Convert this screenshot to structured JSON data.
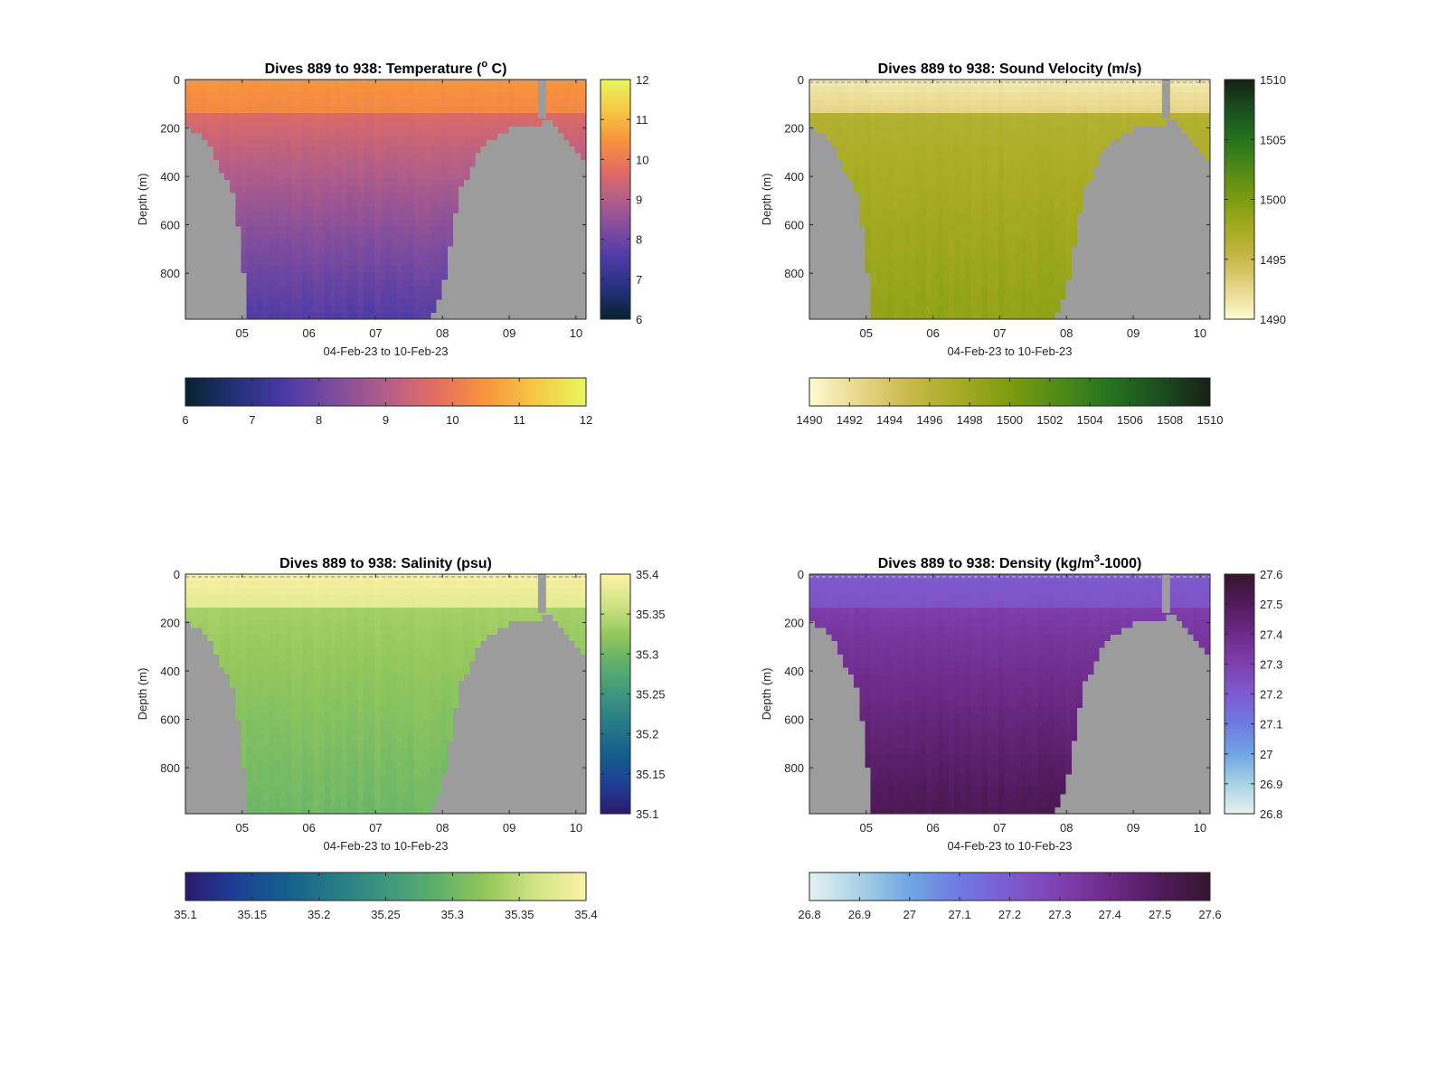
{
  "figure": {
    "background": "#ffffff",
    "mask_color": "#9c9c9c"
  },
  "chart_data": [
    {
      "type": "heatmap",
      "title_main": "Dives 889 to 938: Temperature (",
      "title_sup": "o",
      "title_tail": " C)",
      "xlabel": "04-Feb-23 to 10-Feb-23",
      "ylabel": "Depth (m)",
      "x_ticks": [
        "05",
        "06",
        "07",
        "08",
        "09",
        "10"
      ],
      "x_range_days": [
        4.15,
        10.15
      ],
      "y_ticks": [
        "0",
        "200",
        "400",
        "600",
        "800"
      ],
      "ylim": [
        0,
        990
      ],
      "y_reversed": true,
      "colormap": "thermal",
      "colormap_stops": [
        "#05232e",
        "#24307a",
        "#4b3aa6",
        "#7e4c9e",
        "#b35e88",
        "#e46d60",
        "#f8953b",
        "#f6c845",
        "#e8f85e"
      ],
      "clim": [
        6,
        12
      ],
      "cbar_side_ticks": [
        "6",
        "7",
        "8",
        "9",
        "10",
        "11",
        "12"
      ],
      "cbar_bottom_ticks": [
        "6",
        "7",
        "8",
        "9",
        "10",
        "11",
        "12"
      ],
      "profile": {
        "surface": 10.5,
        "mid": 9.6,
        "deep": 7.6
      }
    },
    {
      "type": "heatmap",
      "title_main": "Dives 889 to 938: Sound Velocity (m/s)",
      "title_sup": "",
      "title_tail": "",
      "xlabel": "04-Feb-23 to 10-Feb-23",
      "ylabel": "Depth (m)",
      "x_ticks": [
        "05",
        "06",
        "07",
        "08",
        "09",
        "10"
      ],
      "x_range_days": [
        4.15,
        10.15
      ],
      "y_ticks": [
        "0",
        "200",
        "400",
        "600",
        "800"
      ],
      "ylim": [
        0,
        990
      ],
      "y_reversed": true,
      "colormap": "speed",
      "colormap_stops": [
        "#fefbd1",
        "#e8d78a",
        "#c9b84a",
        "#a6ab22",
        "#7e9b10",
        "#4f8a17",
        "#24731e",
        "#1a4f20",
        "#172015"
      ],
      "clim": [
        1490,
        1510
      ],
      "cbar_side_ticks": [
        "1490",
        "1495",
        "1500",
        "1505",
        "1510"
      ],
      "cbar_bottom_ticks": [
        "1490",
        "1492",
        "1494",
        "1496",
        "1498",
        "1500",
        "1502",
        "1504",
        "1506",
        "1508",
        "1510"
      ],
      "profile": {
        "surface": 1491.2,
        "mid": 1496.5,
        "deep": 1498.8
      }
    },
    {
      "type": "heatmap",
      "title_main": "Dives 889 to 938: Salinity (psu)",
      "title_sup": "",
      "title_tail": "",
      "xlabel": "04-Feb-23 to 10-Feb-23",
      "ylabel": "Depth (m)",
      "x_ticks": [
        "05",
        "06",
        "07",
        "08",
        "09",
        "10"
      ],
      "x_range_days": [
        4.15,
        10.15
      ],
      "y_ticks": [
        "0",
        "200",
        "400",
        "600",
        "800"
      ],
      "ylim": [
        0,
        990
      ],
      "y_reversed": true,
      "colormap": "haline",
      "colormap_stops": [
        "#2a1a6e",
        "#1e3f96",
        "#135f8c",
        "#267b86",
        "#3d977e",
        "#5daf6c",
        "#94c85c",
        "#d2e486",
        "#fdf2a6"
      ],
      "clim": [
        35.1,
        35.4
      ],
      "cbar_side_ticks": [
        "35.1",
        "35.15",
        "35.2",
        "35.25",
        "35.3",
        "35.35",
        "35.4"
      ],
      "cbar_bottom_ticks": [
        "35.1",
        "35.15",
        "35.2",
        "35.25",
        "35.3",
        "35.35",
        "35.4"
      ],
      "profile": {
        "surface": 35.395,
        "mid": 35.335,
        "deep": 35.3
      }
    },
    {
      "type": "heatmap",
      "title_main": "Dives 889 to 938: Density (kg/m",
      "title_sup": "3",
      "title_tail": "-1000)",
      "xlabel": "04-Feb-23 to 10-Feb-23",
      "ylabel": "Depth (m)",
      "x_ticks": [
        "05",
        "06",
        "07",
        "08",
        "09",
        "10"
      ],
      "x_range_days": [
        4.15,
        10.15
      ],
      "y_ticks": [
        "0",
        "200",
        "400",
        "600",
        "800"
      ],
      "ylim": [
        0,
        990
      ],
      "y_reversed": true,
      "colormap": "dense",
      "colormap_stops": [
        "#e6f1f1",
        "#a9d2e6",
        "#6fa6e3",
        "#6f7ae0",
        "#7d5bd0",
        "#7f3fae",
        "#6e2a88",
        "#501a5c",
        "#36152e"
      ],
      "clim": [
        26.8,
        27.6
      ],
      "cbar_side_ticks": [
        "26.8",
        "26.9",
        "27",
        "27.1",
        "27.2",
        "27.3",
        "27.4",
        "27.5",
        "27.6"
      ],
      "cbar_bottom_ticks": [
        "26.8",
        "26.9",
        "27",
        "27.1",
        "27.2",
        "27.3",
        "27.4",
        "27.5",
        "27.6"
      ],
      "profile": {
        "surface": 27.2,
        "mid": 27.31,
        "deep": 27.52
      }
    }
  ]
}
